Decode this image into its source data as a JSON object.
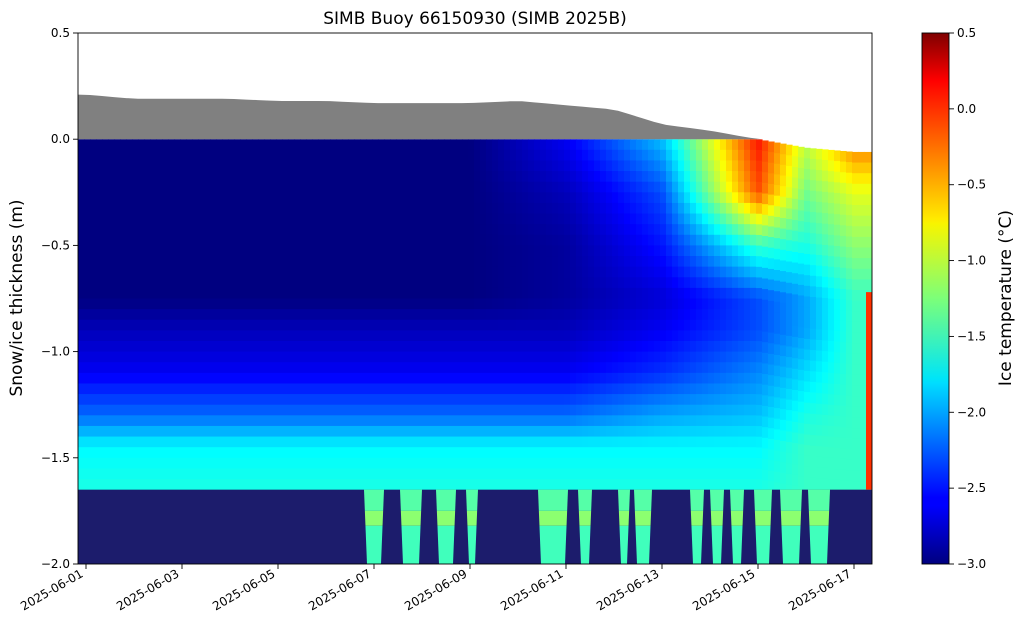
{
  "chart_data": {
    "type": "heatmap",
    "title": "SIMB Buoy 66150930 (SIMB 2025B)",
    "xlabel": "",
    "ylabel": "Snow/ice thickness (m)",
    "colorbar_label": "Ice temperature (°C)",
    "colormap": "jet",
    "colors": {
      "snow": "#808080",
      "below_ice": "#1c1c6c",
      "warm_column": "#ff3000"
    },
    "xlim": [
      "2025-05-31T20:00",
      "2025-06-17T09:00"
    ],
    "ylim": [
      -2.0,
      0.5
    ],
    "clim": [
      -3.0,
      0.5
    ],
    "x_ticks": [
      "2025-06-01",
      "2025-06-03",
      "2025-06-05",
      "2025-06-07",
      "2025-06-09",
      "2025-06-11",
      "2025-06-13",
      "2025-06-15",
      "2025-06-17"
    ],
    "y_ticks": [
      "0.5",
      "0.0",
      "−0.5",
      "−1.0",
      "−1.5",
      "−2.0"
    ],
    "colorbar_ticks": [
      "0.5",
      "0.0",
      "−0.5",
      "−1.0",
      "−1.5",
      "−2.0",
      "−2.5",
      "−3.0"
    ],
    "ice_bottom_m": -1.65,
    "warm_column": {
      "start": "2025-06-17T06:00",
      "top_m": -0.72,
      "bottom_m": -1.65,
      "temperature_c": 0.0
    },
    "snow_surface": {
      "dates": [
        "2025-06-01",
        "2025-06-02",
        "2025-06-03",
        "2025-06-04",
        "2025-06-05",
        "2025-06-06",
        "2025-06-07",
        "2025-06-08",
        "2025-06-09",
        "2025-06-10",
        "2025-06-11",
        "2025-06-12",
        "2025-06-13",
        "2025-06-14",
        "2025-06-15",
        "2025-06-16",
        "2025-06-17"
      ],
      "values": [
        0.21,
        0.19,
        0.19,
        0.19,
        0.18,
        0.18,
        0.17,
        0.17,
        0.17,
        0.18,
        0.16,
        0.14,
        0.07,
        0.04,
        0.0,
        -0.04,
        -0.06
      ]
    },
    "temperature_profile": {
      "depth": [
        0.0,
        -0.25,
        -0.5,
        -0.75,
        -0.9,
        -1.1,
        -1.3,
        -1.45,
        -1.65
      ],
      "dates": [
        "2025-06-01",
        "2025-06-09",
        "2025-06-11",
        "2025-06-13",
        "2025-06-15",
        "2025-06-16",
        "2025-06-17"
      ],
      "temperature": [
        [
          -3.0,
          -3.0,
          -3.0,
          -3.0,
          -2.8,
          -2.6,
          -2.2,
          -1.7,
          -1.6
        ],
        [
          -3.0,
          -3.0,
          -3.0,
          -3.0,
          -2.8,
          -2.6,
          -2.2,
          -1.7,
          -1.6
        ],
        [
          -2.6,
          -2.8,
          -2.9,
          -2.9,
          -2.8,
          -2.6,
          -2.2,
          -1.7,
          -1.6
        ],
        [
          -1.9,
          -2.3,
          -2.5,
          -2.7,
          -2.6,
          -2.4,
          -2.0,
          -1.7,
          -1.6
        ],
        [
          0.0,
          -0.2,
          -1.5,
          -2.3,
          -2.3,
          -2.1,
          -1.9,
          -1.7,
          -1.6
        ],
        [
          -1.0,
          -1.3,
          -1.6,
          -2.0,
          -2.0,
          -1.8,
          -1.6,
          -1.5,
          -1.5
        ],
        [
          -0.3,
          -0.9,
          -1.2,
          -1.5,
          -1.5,
          -1.5,
          -1.5,
          -1.5,
          -1.5
        ]
      ]
    },
    "seawater_gaps": {
      "note": "columns where the measured profile extends to -2.0 m",
      "starts": [
        "2025-06-06T19:00",
        "2025-06-07T13:00",
        "2025-06-08T07:00",
        "2025-06-08T22:00",
        "2025-06-10T10:00",
        "2025-06-11T06:00",
        "2025-06-12T02:00",
        "2025-06-12T10:00",
        "2025-06-13T14:00",
        "2025-06-14T00:00",
        "2025-06-14T10:00",
        "2025-06-14T22:00",
        "2025-06-15T11:00",
        "2025-06-16T01:00"
      ],
      "ends": [
        "2025-06-07T05:00",
        "2025-06-08T00:00",
        "2025-06-08T17:00",
        "2025-06-09T04:00",
        "2025-06-11T01:00",
        "2025-06-11T13:00",
        "2025-06-12T08:00",
        "2025-06-12T19:00",
        "2025-06-13T21:00",
        "2025-06-14T07:00",
        "2025-06-14T17:00",
        "2025-06-15T07:00",
        "2025-06-15T22:00",
        "2025-06-16T12:00"
      ]
    }
  }
}
